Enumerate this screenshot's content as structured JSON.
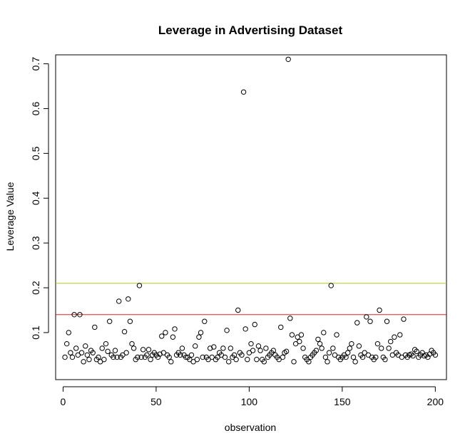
{
  "chart_data": {
    "type": "scatter",
    "title": "Leverage in Advertising Dataset",
    "xlabel": "observation",
    "ylabel": "Leverage Value",
    "xlim": [
      -4,
      206
    ],
    "ylim": [
      -0.005,
      0.72
    ],
    "x_ticks": [
      0,
      50,
      100,
      150,
      200
    ],
    "y_ticks": [
      0.1,
      0.2,
      0.3,
      0.4,
      0.5,
      0.6,
      0.7
    ],
    "grid": false,
    "legend": "none",
    "point_color": "#000000",
    "reference_lines": [
      {
        "y": 0.21,
        "color": "#b5cc18"
      },
      {
        "y": 0.14,
        "color": "#d62728"
      }
    ],
    "series": [
      {
        "values": [
          0.045,
          0.075,
          0.1,
          0.055,
          0.045,
          0.14,
          0.065,
          0.05,
          0.14,
          0.055,
          0.035,
          0.07,
          0.05,
          0.04,
          0.06,
          0.055,
          0.112,
          0.04,
          0.045,
          0.035,
          0.065,
          0.04,
          0.075,
          0.058,
          0.125,
          0.05,
          0.045,
          0.06,
          0.045,
          0.17,
          0.045,
          0.05,
          0.102,
          0.055,
          0.175,
          0.125,
          0.075,
          0.065,
          0.04,
          0.045,
          0.205,
          0.045,
          0.062,
          0.045,
          0.05,
          0.062,
          0.04,
          0.05,
          0.055,
          0.05,
          0.045,
          0.052,
          0.092,
          0.055,
          0.1,
          0.05,
          0.045,
          0.035,
          0.09,
          0.108,
          0.05,
          0.055,
          0.05,
          0.065,
          0.05,
          0.045,
          0.045,
          0.04,
          0.05,
          0.035,
          0.07,
          0.04,
          0.09,
          0.1,
          0.045,
          0.125,
          0.045,
          0.04,
          0.065,
          0.045,
          0.068,
          0.04,
          0.045,
          0.055,
          0.05,
          0.065,
          0.045,
          0.105,
          0.035,
          0.065,
          0.045,
          0.05,
          0.04,
          0.15,
          0.055,
          0.05,
          0.637,
          0.108,
          0.04,
          0.055,
          0.075,
          0.06,
          0.118,
          0.04,
          0.07,
          0.06,
          0.04,
          0.035,
          0.065,
          0.045,
          0.05,
          0.055,
          0.06,
          0.05,
          0.045,
          0.04,
          0.112,
          0.045,
          0.055,
          0.058,
          0.71,
          0.132,
          0.095,
          0.035,
          0.075,
          0.09,
          0.08,
          0.095,
          0.065,
          0.045,
          0.04,
          0.035,
          0.045,
          0.05,
          0.055,
          0.06,
          0.085,
          0.075,
          0.065,
          0.1,
          0.045,
          0.035,
          0.055,
          0.205,
          0.065,
          0.05,
          0.095,
          0.045,
          0.04,
          0.045,
          0.05,
          0.045,
          0.055,
          0.065,
          0.075,
          0.045,
          0.035,
          0.122,
          0.07,
          0.05,
          0.045,
          0.055,
          0.135,
          0.05,
          0.125,
          0.045,
          0.04,
          0.045,
          0.075,
          0.15,
          0.065,
          0.045,
          0.04,
          0.125,
          0.065,
          0.08,
          0.05,
          0.09,
          0.055,
          0.05,
          0.095,
          0.045,
          0.13,
          0.05,
          0.045,
          0.05,
          0.052,
          0.048,
          0.062,
          0.058,
          0.045,
          0.05,
          0.055,
          0.048,
          0.05,
          0.045,
          0.052,
          0.06,
          0.055,
          0.05
        ]
      }
    ]
  }
}
